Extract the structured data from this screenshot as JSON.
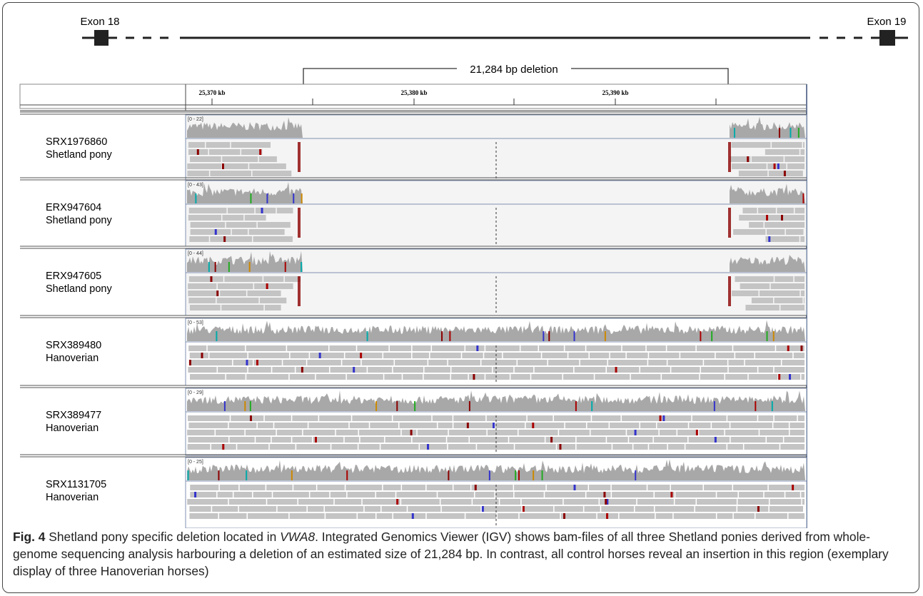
{
  "header": {
    "exon_left": "Exon 18",
    "exon_right": "Exon 19",
    "deletion": "21,284 bp deletion"
  },
  "ruler": {
    "ticks": [
      "25,370 kb",
      "25,380 kb",
      "25,390 kb"
    ]
  },
  "tracks": [
    {
      "sample": "SRX1976860",
      "breed": "Shetland pony",
      "range": "[0 - 22]"
    },
    {
      "sample": "ERX947604",
      "breed": "Shetland pony",
      "range": "[0 - 43]"
    },
    {
      "sample": "ERX947605",
      "breed": "Shetland pony",
      "range": "[0 - 44]"
    },
    {
      "sample": "SRX389480",
      "breed": "Hanoverian",
      "range": "[0 - 53]"
    },
    {
      "sample": "SRX389477",
      "breed": "Hanoverian",
      "range": "[0 - 29]"
    },
    {
      "sample": "SRX1131705",
      "breed": "Hanoverian",
      "range": "[0 - 25]"
    }
  ],
  "caption": {
    "label": "Fig. 4",
    "text_1": " Shetland pony specific deletion located in ",
    "gene": "VWA8",
    "text_2": ". Integrated Genomics Viewer (IGV) shows bam-files of all three Shetland ponies derived from whole-genome sequencing analysis harbouring a deletion of an estimated size of 21,284 bp. In contrast, all control horses reveal an insertion in this region (exemplary display of three Hanoverian horses)"
  }
}
